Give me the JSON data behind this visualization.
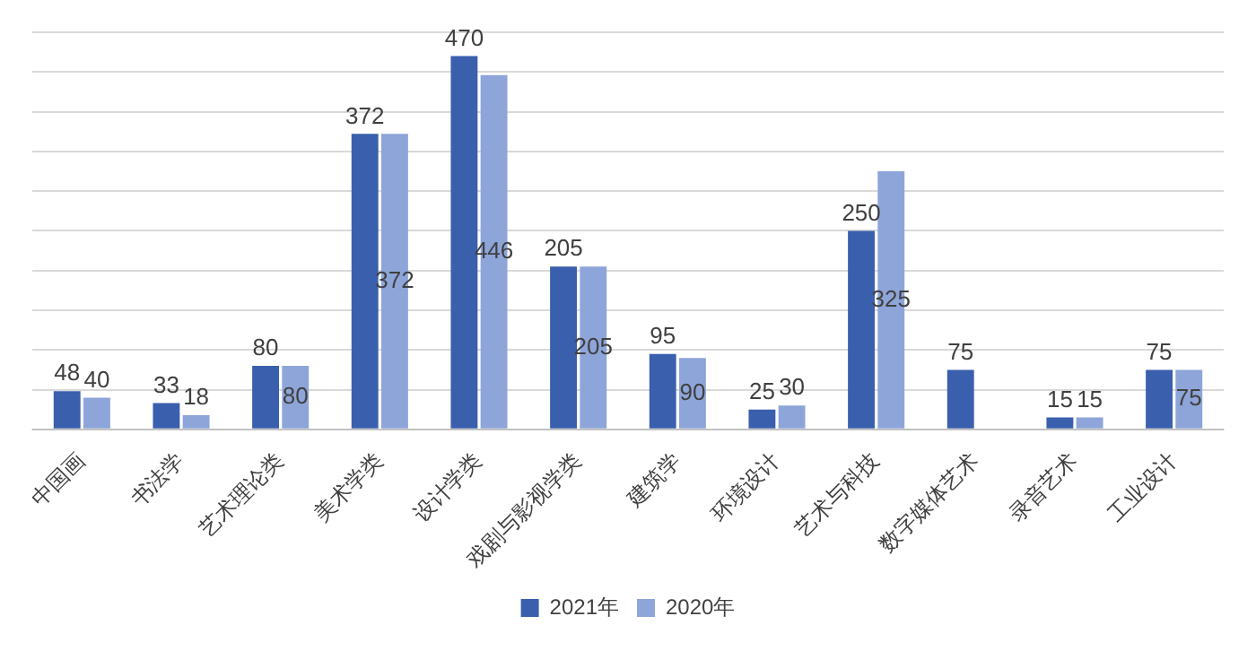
{
  "chart_data": {
    "type": "bar",
    "categories": [
      "中国画",
      "书法学",
      "艺术理论类",
      "美术学类",
      "设计学类",
      "戏剧与影视学类",
      "建筑学",
      "环境设计",
      "艺术与科技",
      "数字媒体艺术",
      "录音艺术",
      "工业设计"
    ],
    "series": [
      {
        "name": "2021年",
        "color": "#3a5fad",
        "values": [
          48,
          33,
          80,
          372,
          470,
          205,
          95,
          25,
          250,
          75,
          15,
          75
        ]
      },
      {
        "name": "2020年",
        "color": "#8ea5da",
        "values": [
          40,
          18,
          80,
          372,
          446,
          205,
          90,
          30,
          325,
          null,
          15,
          75
        ]
      }
    ],
    "data_labels": true,
    "grid": "y",
    "legend": "bottom"
  }
}
